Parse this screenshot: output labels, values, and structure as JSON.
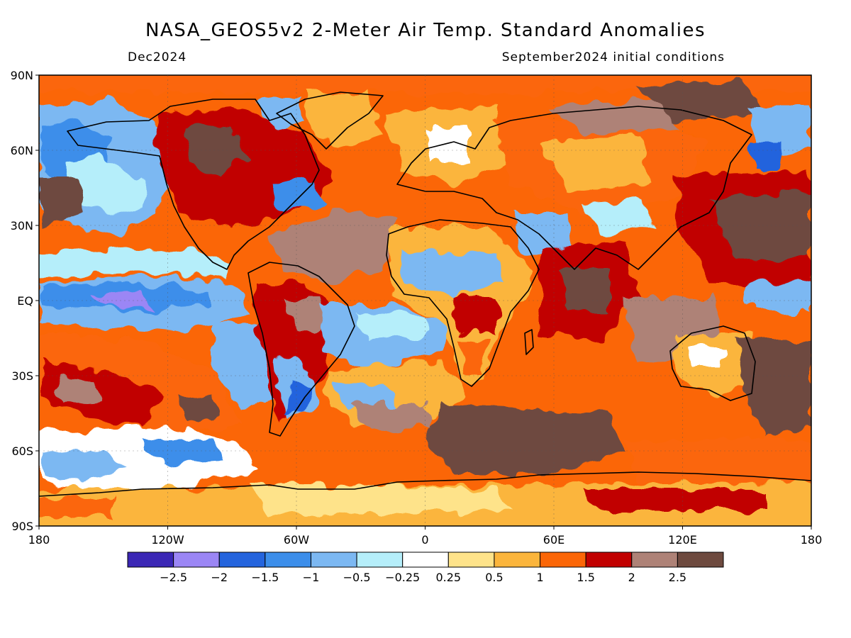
{
  "title": "NASA_GEOS5v2 2-Meter Air Temp. Standard Anomalies",
  "valid_month": "Dec2024",
  "init_conditions": "September2024 initial conditions",
  "axes": {
    "lat_labels": [
      "90N",
      "60N",
      "30N",
      "EQ",
      "30S",
      "60S",
      "90S"
    ],
    "lon_labels": [
      "180",
      "120W",
      "60W",
      "0",
      "60E",
      "120E",
      "180"
    ]
  },
  "colorbar": {
    "colors": [
      "#3b27b5",
      "#9b86f5",
      "#2464dd",
      "#3c8eea",
      "#7cb8f2",
      "#b5eefa",
      "#ffffff",
      "#fee38a",
      "#fbb53c",
      "#fb6607",
      "#c10000",
      "#ae8277",
      "#6e4a3f"
    ],
    "labels": [
      "-2.5",
      "-2",
      "-1.5",
      "-1",
      "-0.5",
      "-0.25",
      "0.25",
      "0.5",
      "1",
      "1.5",
      "2",
      "2.5"
    ]
  }
}
